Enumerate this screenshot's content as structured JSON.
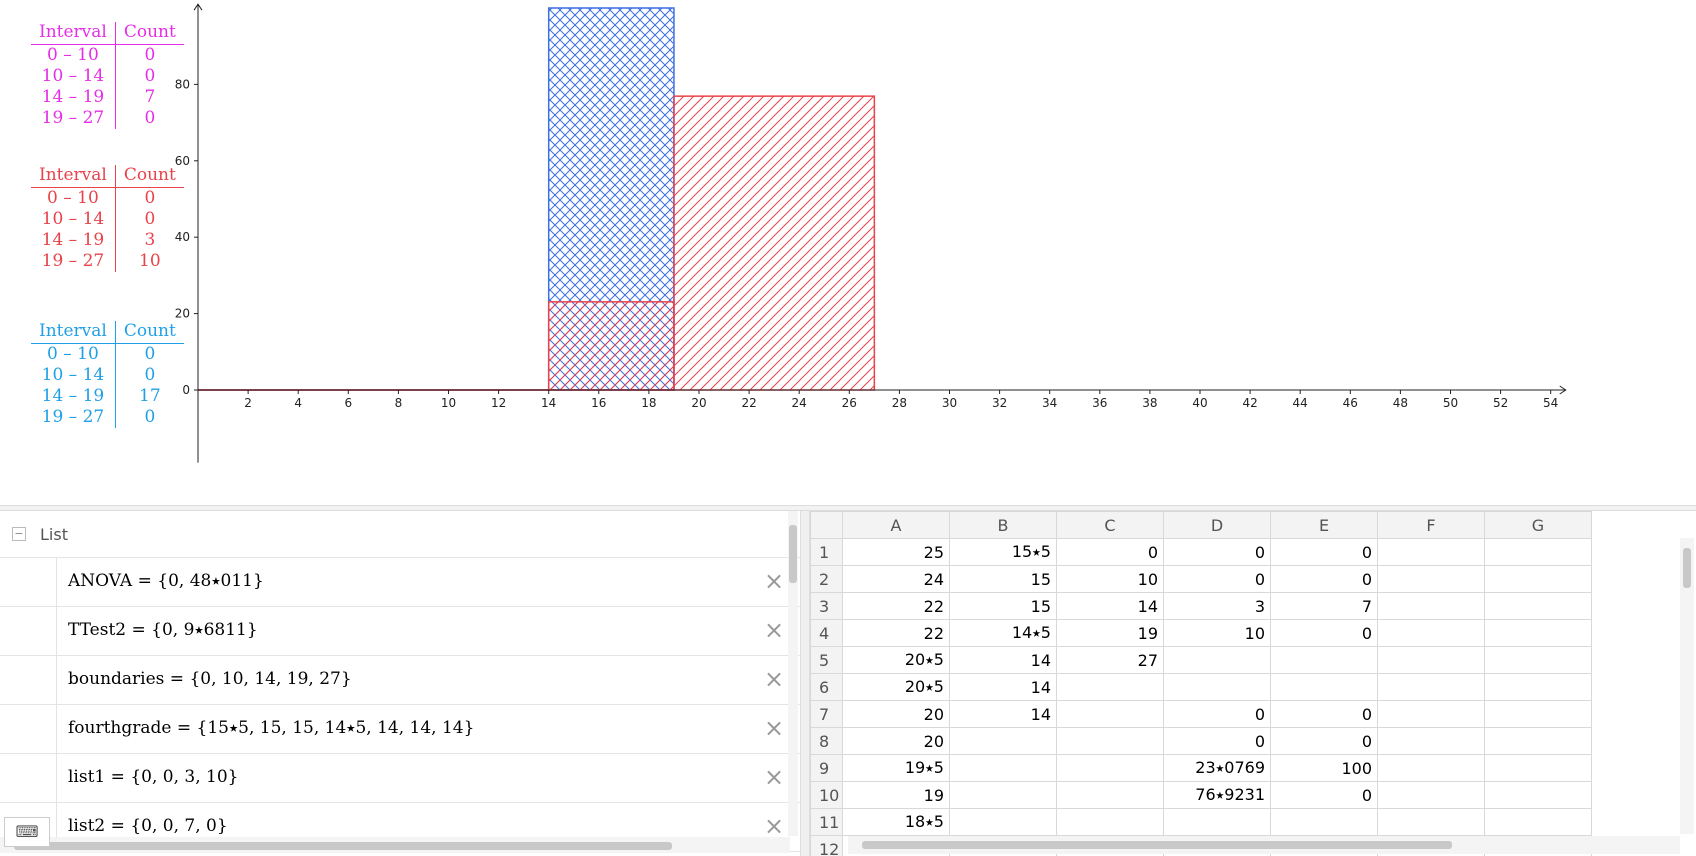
{
  "colors": {
    "magenta": "#e62ee6",
    "red": "#e8424a",
    "blue": "#1fa0e6",
    "hist_blue": "#3c6fe6",
    "hist_red": "#e8424a",
    "axis": "#222222"
  },
  "frequency_tables": [
    {
      "color": "#e62ee6",
      "header": [
        "Interval",
        "Count"
      ],
      "rows": [
        [
          "0 – 10",
          "0"
        ],
        [
          "10 – 14",
          "0"
        ],
        [
          "14 – 19",
          "7"
        ],
        [
          "19 – 27",
          "0"
        ]
      ]
    },
    {
      "color": "#e8424a",
      "header": [
        "Interval",
        "Count"
      ],
      "rows": [
        [
          "0 – 10",
          "0"
        ],
        [
          "10 – 14",
          "0"
        ],
        [
          "14 – 19",
          "3"
        ],
        [
          "19 – 27",
          "10"
        ]
      ]
    },
    {
      "color": "#1fa0e6",
      "header": [
        "Interval",
        "Count"
      ],
      "rows": [
        [
          "0 – 10",
          "0"
        ],
        [
          "10 – 14",
          "0"
        ],
        [
          "14 – 19",
          "17"
        ],
        [
          "19 – 27",
          "0"
        ]
      ]
    }
  ],
  "chart_data": {
    "type": "bar",
    "x_ticks": [
      2,
      4,
      6,
      8,
      10,
      12,
      14,
      16,
      18,
      20,
      22,
      24,
      26,
      28,
      30,
      32,
      34,
      36,
      38,
      40,
      42,
      44,
      46,
      48,
      50,
      52,
      54
    ],
    "y_ticks": [
      0,
      20,
      40,
      60,
      80
    ],
    "xlim": [
      0,
      54.6
    ],
    "ylim": [
      -19,
      101
    ],
    "histograms": [
      {
        "color": "#3c6fe6",
        "pattern": "crosshatch",
        "bars": [
          {
            "x0": 14,
            "x1": 19,
            "height": 100
          }
        ]
      },
      {
        "color": "#e8424a",
        "pattern": "diagonal",
        "bars": [
          {
            "x0": 14,
            "x1": 19,
            "height": 23.0769
          },
          {
            "x0": 19,
            "x1": 27,
            "height": 76.9231
          }
        ]
      }
    ]
  },
  "algebra": {
    "header": "List",
    "items": [
      {
        "name": "ANOVA",
        "value": "{0, 48⭑011}"
      },
      {
        "name": "TTest2",
        "value": "{0, 9⭑6811}"
      },
      {
        "name": "boundaries",
        "value": "{0, 10, 14, 19, 27}"
      },
      {
        "name": "fourthgrade",
        "value": "{15⭑5, 15, 15, 14⭑5, 14, 14, 14}"
      },
      {
        "name": "list1",
        "value": "{0, 0, 3, 10}"
      },
      {
        "name": "list2",
        "value": "{0, 0, 7, 0}"
      }
    ]
  },
  "spreadsheet": {
    "columns": [
      "A",
      "B",
      "C",
      "D",
      "E",
      "F",
      "G"
    ],
    "rows": [
      [
        "25",
        "15⭑5",
        "0",
        "0",
        "0",
        "",
        ""
      ],
      [
        "24",
        "15",
        "10",
        "0",
        "0",
        "",
        ""
      ],
      [
        "22",
        "15",
        "14",
        "3",
        "7",
        "",
        ""
      ],
      [
        "22",
        "14⭑5",
        "19",
        "10",
        "0",
        "",
        ""
      ],
      [
        "20⭑5",
        "14",
        "27",
        "",
        "",
        "",
        ""
      ],
      [
        "20⭑5",
        "14",
        "",
        "",
        "",
        "",
        ""
      ],
      [
        "20",
        "14",
        "",
        "0",
        "0",
        "",
        ""
      ],
      [
        "20",
        "",
        "",
        "0",
        "0",
        "",
        ""
      ],
      [
        "19⭑5",
        "",
        "",
        "23⭑0769",
        "100",
        "",
        ""
      ],
      [
        "19",
        "",
        "",
        "76⭑9231",
        "0",
        "",
        ""
      ],
      [
        "18⭑5",
        "",
        "",
        "",
        "",
        "",
        ""
      ],
      [
        "",
        "",
        "",
        "",
        "",
        "",
        ""
      ]
    ]
  }
}
